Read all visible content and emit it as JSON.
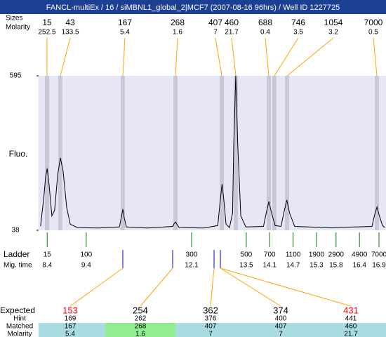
{
  "title": "FANCL-multiEx / 16 / siMBNL1_global_2|MCF7 (2007-08-16 96hrs) / Well ID 1227725",
  "peaks": {
    "size_label": "Sizes",
    "molarity_label": "Molarity",
    "sizes": [
      15,
      43,
      167,
      268,
      407,
      460,
      688,
      746,
      1054,
      7000
    ],
    "molarities": [
      252.5,
      133.5,
      5.4,
      1.6,
      7,
      21.7,
      0.4,
      3.5,
      3.2,
      0.5
    ]
  },
  "chart_data": {
    "type": "line",
    "y_label": "Fluo.",
    "color": "#000000",
    "xlim": [
      8.18,
      17.08
    ],
    "ylim": [
      38,
      595
    ],
    "yticks": [
      38,
      595
    ],
    "x": [
      8.23,
      8.31,
      8.36,
      8.4,
      8.45,
      8.52,
      8.59,
      8.67,
      8.74,
      8.81,
      8.9,
      8.99,
      9.17,
      9.71,
      10.25,
      10.3,
      10.34,
      10.37,
      10.43,
      10.97,
      11.62,
      11.65,
      11.69,
      11.72,
      11.78,
      12.41,
      12.77,
      12.83,
      12.88,
      12.93,
      12.98,
      13.07,
      13.15,
      13.18,
      13.23,
      13.28,
      13.36,
      13.49,
      13.94,
      14.01,
      14.08,
      14.15,
      14.24,
      14.39,
      14.46,
      14.54,
      14.61,
      14.74,
      15.64,
      16.72,
      16.79,
      16.85,
      16.9,
      16.99,
      17.05
    ],
    "values": [
      53,
      150,
      230,
      261,
      200,
      90,
      110,
      240,
      299,
      250,
      120,
      60,
      48,
      46,
      50,
      85,
      114,
      85,
      50,
      46,
      52,
      62,
      68,
      60,
      48,
      46,
      55,
      140,
      205,
      140,
      60,
      48,
      100,
      350,
      595,
      350,
      90,
      50,
      52,
      100,
      142,
      100,
      55,
      52,
      100,
      147,
      100,
      52,
      47,
      52,
      95,
      122,
      95,
      55,
      48
    ]
  },
  "ladder": {
    "label": "Ladder",
    "mig_label": "Mig. time",
    "sizes": [
      15,
      100,
      300,
      500,
      700,
      1100,
      1900,
      2900,
      4900,
      7000
    ],
    "times": [
      8.4,
      9.4,
      12.1,
      13.5,
      14.1,
      14.7,
      15.3,
      15.8,
      16.4,
      16.9
    ]
  },
  "results": {
    "expected_label": "Expected",
    "hint_label": "Hint",
    "matched_label": "Matched",
    "molarity_label": "Molarity",
    "expected": [
      153,
      254,
      362,
      374,
      431
    ],
    "expected_colors": [
      "#ff0000",
      "#000000",
      "#000000",
      "#000000",
      "#ff0000"
    ],
    "hint": [
      169,
      262,
      376,
      400,
      441
    ],
    "matched": [
      167,
      268,
      407,
      407,
      460
    ],
    "molarity": [
      5.4,
      1.6,
      7,
      7,
      21.7
    ]
  }
}
